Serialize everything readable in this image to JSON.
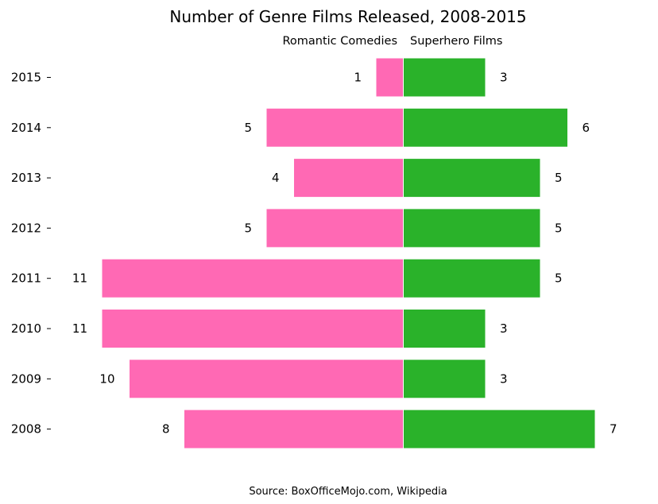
{
  "chart_data": {
    "type": "bar",
    "orientation": "diverging-horizontal",
    "title": "Number of Genre Films Released, 2008-2015",
    "categories": [
      "2015",
      "2014",
      "2013",
      "2012",
      "2011",
      "2010",
      "2009",
      "2008"
    ],
    "series": [
      {
        "name": "Romantic Comedies",
        "side": "left",
        "color": "#ff69b4",
        "values": [
          1,
          5,
          4,
          5,
          11,
          11,
          10,
          8
        ]
      },
      {
        "name": "Superhero Films",
        "side": "right",
        "color": "#2ab22a",
        "values": [
          3,
          6,
          5,
          5,
          5,
          3,
          3,
          7
        ]
      }
    ],
    "xlim": [
      -11,
      7
    ],
    "grid": false,
    "legend": "none",
    "source": "Source: BoxOfficeMojo.com, Wikipedia"
  }
}
